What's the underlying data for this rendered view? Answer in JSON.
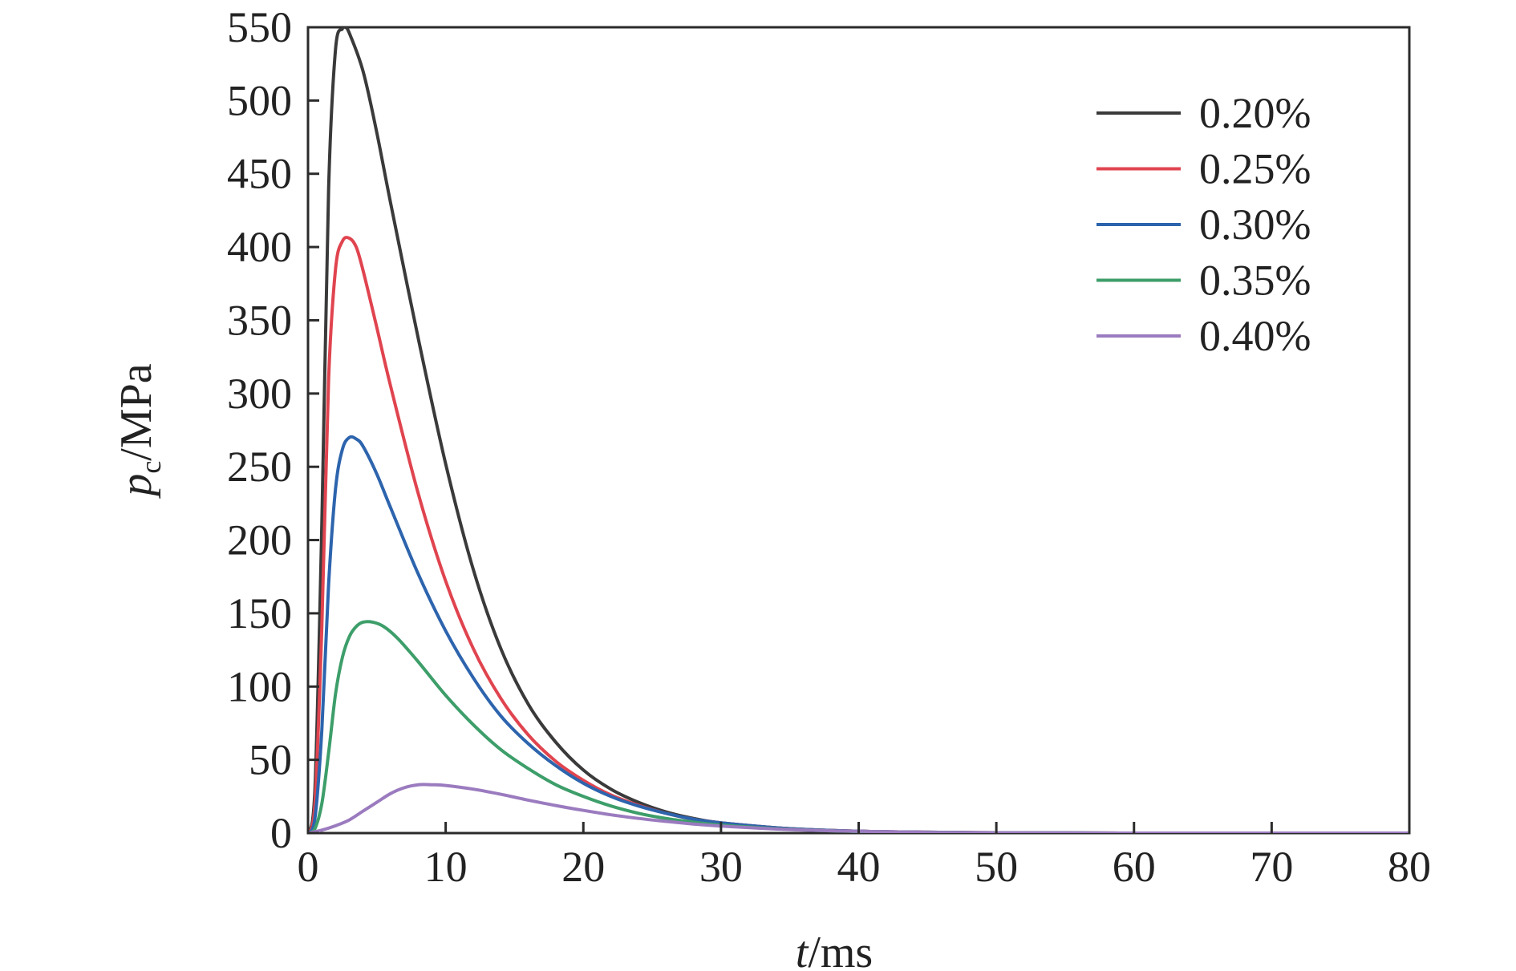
{
  "chart_data": {
    "type": "line",
    "title": "",
    "xlabel": {
      "var": "t",
      "unit": "/ms"
    },
    "ylabel": {
      "var": "p",
      "sub": "c",
      "unit": "/MPa"
    },
    "xlim": [
      0,
      80
    ],
    "ylim": [
      0,
      550
    ],
    "xticks": [
      0,
      10,
      20,
      30,
      40,
      50,
      60,
      70,
      80
    ],
    "yticks": [
      0,
      50,
      100,
      150,
      200,
      250,
      300,
      350,
      400,
      450,
      500,
      550
    ],
    "grid": false,
    "legend_position": "top-right",
    "series": [
      {
        "name": "0.20%",
        "color": "#3a3a3a",
        "x": [
          0,
          0.5,
          1.0,
          1.5,
          2.0,
          2.5,
          2.7,
          3.0,
          4,
          5,
          6,
          8,
          10,
          12,
          14,
          16,
          18,
          20,
          22,
          24,
          26,
          28,
          30,
          35,
          40,
          45,
          50,
          55,
          60,
          70,
          80
        ],
        "y": [
          0,
          30,
          210,
          440,
          535,
          549,
          550,
          546,
          520,
          478,
          430,
          338,
          252,
          180,
          126,
          88,
          62,
          43,
          30,
          21,
          14.5,
          10,
          7,
          3,
          1.3,
          0.6,
          0.3,
          0.1,
          0,
          0,
          0
        ]
      },
      {
        "name": "0.25%",
        "color": "#e0444f",
        "x": [
          0,
          0.5,
          1.0,
          1.5,
          2.0,
          2.5,
          3.0,
          3.5,
          4,
          5,
          6,
          8,
          10,
          12,
          14,
          16,
          18,
          20,
          22,
          24,
          26,
          28,
          30,
          35,
          40,
          45,
          50,
          55,
          60,
          70,
          80
        ],
        "y": [
          0,
          20,
          140,
          310,
          385,
          404,
          406,
          400,
          384,
          345,
          305,
          232,
          172,
          126,
          92,
          67,
          49,
          36,
          26,
          19,
          13.5,
          9.5,
          7,
          3,
          1.3,
          0.6,
          0.3,
          0.1,
          0,
          0,
          0
        ]
      },
      {
        "name": "0.30%",
        "color": "#2d64ad",
        "x": [
          0,
          0.5,
          1.0,
          1.5,
          2.0,
          2.5,
          3.0,
          3.5,
          4,
          5,
          6,
          8,
          10,
          12,
          14,
          16,
          18,
          20,
          22,
          24,
          26,
          28,
          30,
          35,
          40,
          45,
          50,
          55,
          60,
          70,
          80
        ],
        "y": [
          0,
          10,
          70,
          170,
          235,
          262,
          270,
          269,
          264,
          245,
          222,
          177,
          138,
          106,
          80,
          61,
          46,
          34,
          25,
          18.5,
          13.5,
          9.5,
          7,
          3,
          1.3,
          0.6,
          0.3,
          0.1,
          0,
          0,
          0
        ]
      },
      {
        "name": "0.35%",
        "color": "#3d9e6a",
        "x": [
          0,
          0.5,
          1.0,
          1.5,
          2.0,
          2.5,
          3.0,
          3.5,
          4,
          4.7,
          5.5,
          6.5,
          8,
          10,
          12,
          14,
          16,
          18,
          20,
          22,
          24,
          26,
          28,
          30,
          35,
          40,
          45,
          50,
          55,
          60,
          70,
          80
        ],
        "y": [
          0,
          3,
          20,
          55,
          95,
          120,
          134,
          141,
          144,
          144,
          141,
          133,
          117,
          94,
          74,
          57,
          44,
          33,
          25,
          18.5,
          13.5,
          10,
          7.5,
          5.5,
          2.5,
          1.1,
          0.5,
          0.2,
          0.1,
          0,
          0,
          0
        ]
      },
      {
        "name": "0.40%",
        "color": "#9b7bbf",
        "x": [
          0,
          1,
          2,
          3,
          4,
          5,
          6,
          7,
          8,
          9,
          10,
          12,
          14,
          16,
          18,
          20,
          22,
          24,
          26,
          28,
          30,
          35,
          40,
          45,
          50,
          55,
          60,
          70,
          80
        ],
        "y": [
          0,
          2,
          5,
          9,
          15,
          21,
          27,
          31,
          33,
          33,
          32.5,
          30,
          26.5,
          22.5,
          18.8,
          15.5,
          12.5,
          10,
          8,
          6.2,
          4.8,
          2.4,
          1.2,
          0.5,
          0.2,
          0.1,
          0,
          0,
          0
        ]
      }
    ]
  }
}
